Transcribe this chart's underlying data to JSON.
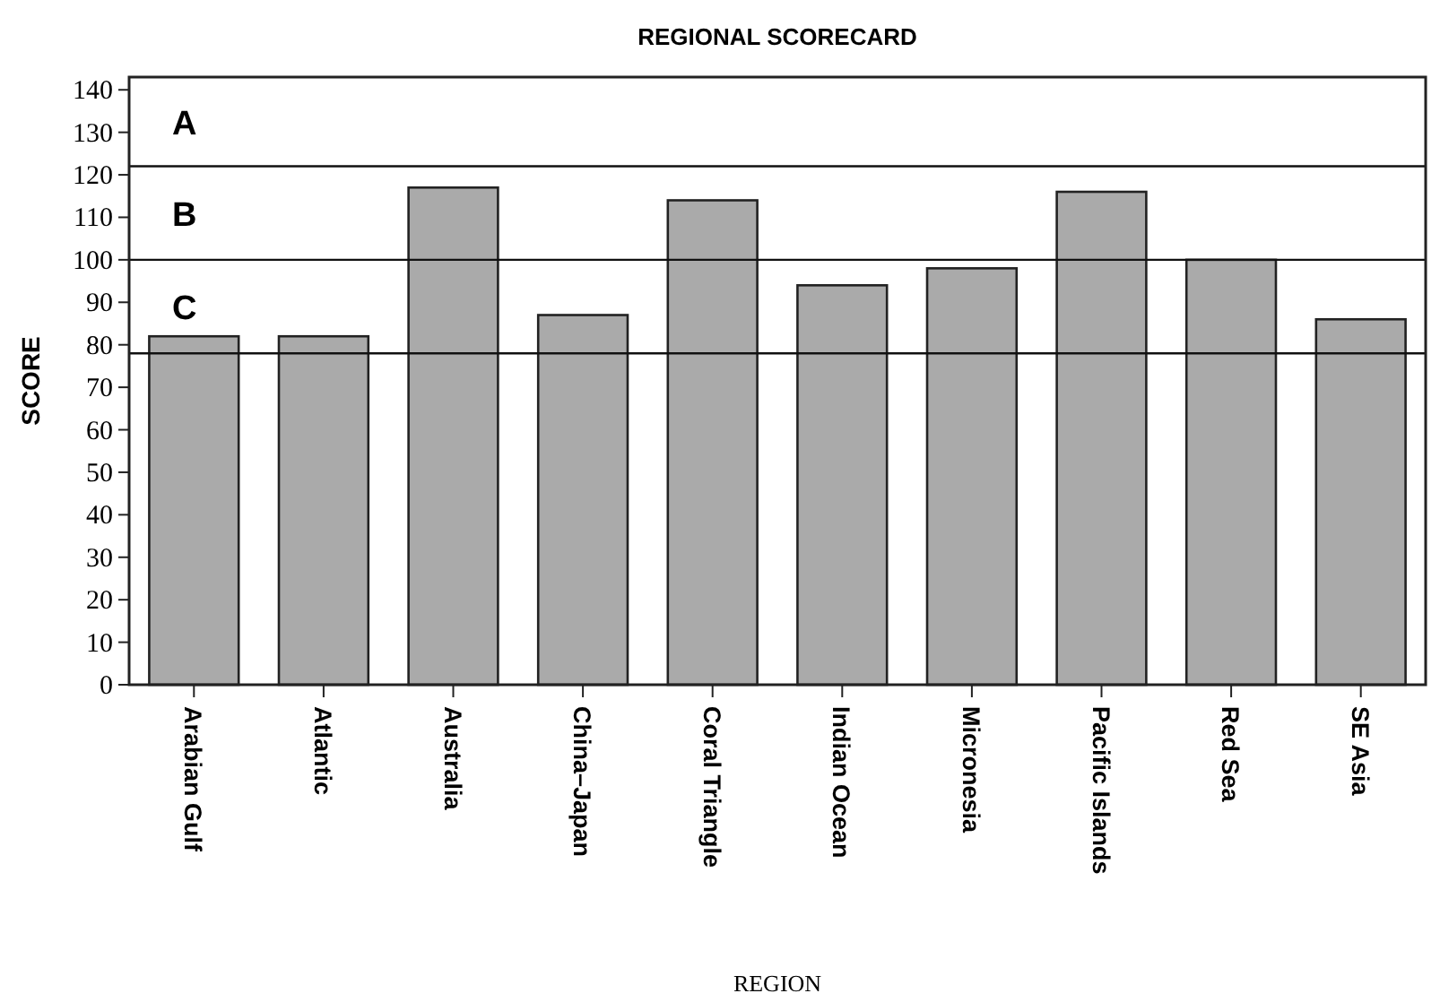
{
  "chart_data": {
    "type": "bar",
    "title": "REGIONAL SCORECARD",
    "xlabel": "REGION",
    "ylabel": "SCORE",
    "categories": [
      "Arabian Gulf",
      "Atlantic",
      "Australia",
      "China–Japan",
      "Coral Triangle",
      "Indian Ocean",
      "Micronesia",
      "Pacific Islands",
      "Red Sea",
      "SE Asia"
    ],
    "values": [
      82,
      82,
      117,
      87,
      114,
      94,
      98,
      116,
      100,
      86
    ],
    "color": "#aaaaaa",
    "ylim": [
      0,
      143
    ],
    "yticks": [
      0,
      10,
      20,
      30,
      40,
      50,
      60,
      70,
      80,
      90,
      100,
      110,
      120,
      130,
      140
    ],
    "ref_lines": [
      {
        "axis": "y",
        "value": 78
      },
      {
        "axis": "y",
        "value": 100
      },
      {
        "axis": "y",
        "value": 122
      }
    ],
    "annotations": [
      "A",
      "B",
      "C"
    ]
  }
}
